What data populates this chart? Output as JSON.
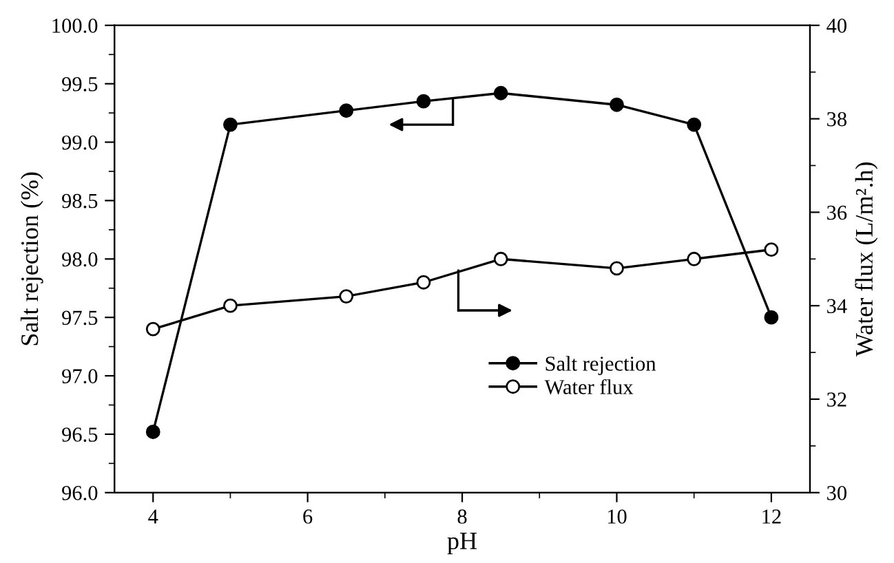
{
  "chart_data": {
    "type": "line",
    "xlabel": "pH",
    "ylabel": "Salt rejection (%)",
    "y2label": "Water flux (L/m².h)",
    "x": [
      4,
      5,
      6.5,
      7.5,
      8.5,
      10,
      11,
      12
    ],
    "xlim": [
      3.5,
      12.5
    ],
    "xticks": [
      4,
      6,
      8,
      10,
      12
    ],
    "ylim": [
      96.0,
      100.0
    ],
    "yticks": [
      {
        "value": 96.0,
        "label": "96.0"
      },
      {
        "value": 96.5,
        "label": "96.5"
      },
      {
        "value": 97.0,
        "label": "97.0"
      },
      {
        "value": 97.5,
        "label": "97.5"
      },
      {
        "value": 98.0,
        "label": "98.0"
      },
      {
        "value": 98.5,
        "label": "98.5"
      },
      {
        "value": 99.0,
        "label": "99.0"
      },
      {
        "value": 99.5,
        "label": "99.5"
      },
      {
        "value": 100.0,
        "label": "100.0"
      }
    ],
    "y2lim": [
      30,
      40
    ],
    "y2ticks": [
      30,
      32,
      34,
      36,
      38,
      40
    ],
    "series": [
      {
        "name": "Salt rejection",
        "color": "#000000",
        "marker": "circle",
        "values": [
          96.52,
          99.15,
          99.27,
          99.35,
          99.42,
          99.32,
          99.15,
          97.5
        ]
      },
      {
        "name": "Water flux",
        "color": "#000000",
        "marker": "circle",
        "axis": "y2",
        "values": [
          33.5,
          34.0,
          34.2,
          34.5,
          35.0,
          34.8,
          35.0,
          35.2
        ]
      }
    ],
    "legend": "center right",
    "grid": false
  }
}
